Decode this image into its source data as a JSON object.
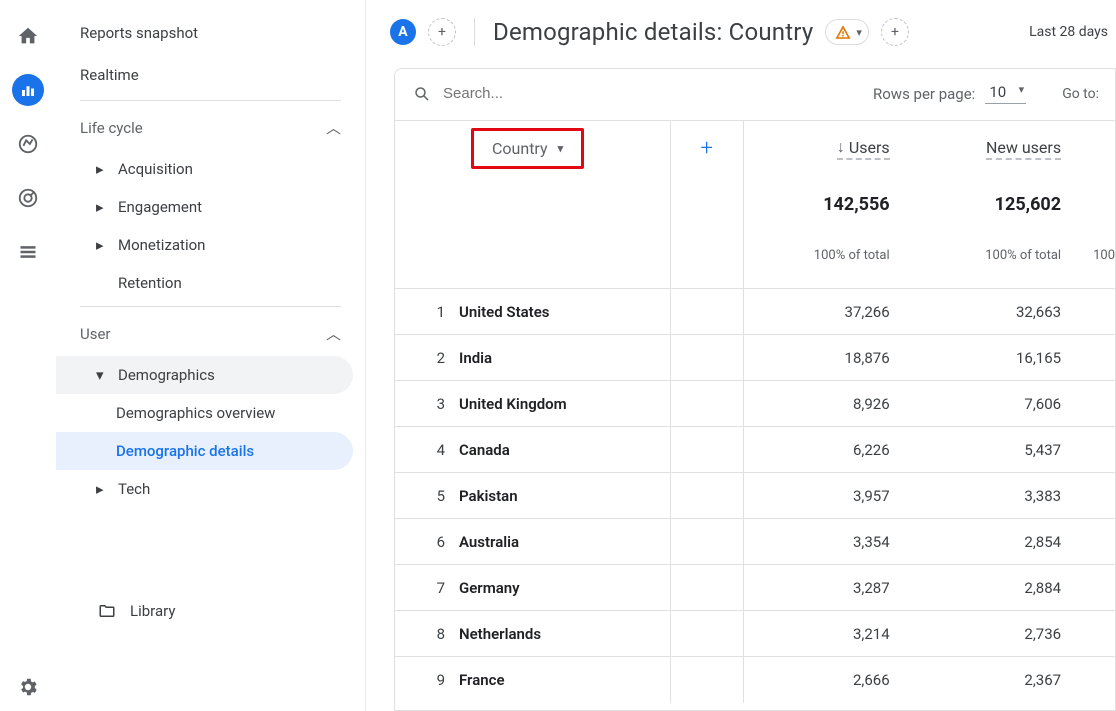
{
  "rail": {
    "icons": [
      "home",
      "reports",
      "explore",
      "advertising",
      "configure"
    ],
    "active_index": 1
  },
  "sidebar": {
    "reports_snapshot": "Reports snapshot",
    "realtime": "Realtime",
    "life_cycle": {
      "label": "Life cycle",
      "items": [
        "Acquisition",
        "Engagement",
        "Monetization",
        "Retention"
      ]
    },
    "user": {
      "label": "User",
      "demographics": {
        "label": "Demographics",
        "overview": "Demographics overview",
        "details": "Demographic details"
      },
      "tech": "Tech"
    },
    "library": "Library"
  },
  "header": {
    "badge": "A",
    "title": "Demographic details: Country",
    "date_range": "Last 28 days"
  },
  "table": {
    "search_placeholder": "Search...",
    "rows_per_page_label": "Rows per page:",
    "rows_per_page_value": "10",
    "goto_label": "Go to:",
    "dimension_label": "Country",
    "columns": {
      "users": "Users",
      "new_users": "New users"
    },
    "totals": {
      "users": "142,556",
      "new_users": "125,602",
      "users_pct": "100% of total",
      "new_users_pct": "100% of total",
      "extra_pct": "100"
    },
    "rows": [
      {
        "idx": "1",
        "country": "United States",
        "users": "37,266",
        "new_users": "32,663"
      },
      {
        "idx": "2",
        "country": "India",
        "users": "18,876",
        "new_users": "16,165"
      },
      {
        "idx": "3",
        "country": "United Kingdom",
        "users": "8,926",
        "new_users": "7,606"
      },
      {
        "idx": "4",
        "country": "Canada",
        "users": "6,226",
        "new_users": "5,437"
      },
      {
        "idx": "5",
        "country": "Pakistan",
        "users": "3,957",
        "new_users": "3,383"
      },
      {
        "idx": "6",
        "country": "Australia",
        "users": "3,354",
        "new_users": "2,854"
      },
      {
        "idx": "7",
        "country": "Germany",
        "users": "3,287",
        "new_users": "2,884"
      },
      {
        "idx": "8",
        "country": "Netherlands",
        "users": "3,214",
        "new_users": "2,736"
      },
      {
        "idx": "9",
        "country": "France",
        "users": "2,666",
        "new_users": "2,367"
      }
    ]
  },
  "colors": {
    "accent": "#1a73e8",
    "highlight_border": "#e30613",
    "text": "#3c4043",
    "muted": "#5f6368",
    "border": "#e0e0e0"
  }
}
